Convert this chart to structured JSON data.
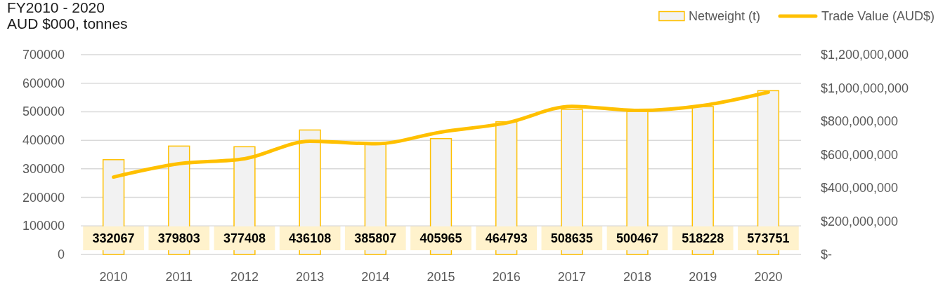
{
  "chart_data": {
    "type": "bar",
    "title": "FY2010 - 2020",
    "subtitle": "AUD $000, tonnes",
    "categories": [
      "2010",
      "2011",
      "2012",
      "2013",
      "2014",
      "2015",
      "2016",
      "2017",
      "2018",
      "2019",
      "2020"
    ],
    "series": [
      {
        "name": "Netweight (t)",
        "color": "#f2f2f2",
        "values": [
          332067,
          379803,
          377408,
          436108,
          385807,
          405965,
          464793,
          508635,
          500467,
          518228,
          573751
        ],
        "value_labels": [
          "332067",
          "379803",
          "377408",
          "436108",
          "385807",
          "405965",
          "464793",
          "508635",
          "500467",
          "518228",
          "573751"
        ]
      },
      {
        "name": "Trade Value (AUD$)",
        "type": "line",
        "axis": "y2",
        "color": "#ffc000",
        "values": [
          465000000,
          545000000,
          575000000,
          680000000,
          665000000,
          735000000,
          790000000,
          890000000,
          865000000,
          895000000,
          975000000
        ]
      }
    ],
    "ylim": [
      0,
      700000
    ],
    "yticks": [
      0,
      100000,
      200000,
      300000,
      400000,
      500000,
      600000,
      700000
    ],
    "y2lim": [
      0,
      1200000000
    ],
    "y2ticks": [
      {
        "value": 0,
        "label": "$-"
      },
      {
        "value": 200000000,
        "label": "$200,000,000"
      },
      {
        "value": 400000000,
        "label": "$400,000,000"
      },
      {
        "value": 600000000,
        "label": "$600,000,000"
      },
      {
        "value": 800000000,
        "label": "$800,000,000"
      },
      {
        "value": 1000000000,
        "label": "$1,000,000,000"
      },
      {
        "value": 1200000000,
        "label": "$1,200,000,000"
      }
    ],
    "grid": "y",
    "legend": "top right"
  }
}
